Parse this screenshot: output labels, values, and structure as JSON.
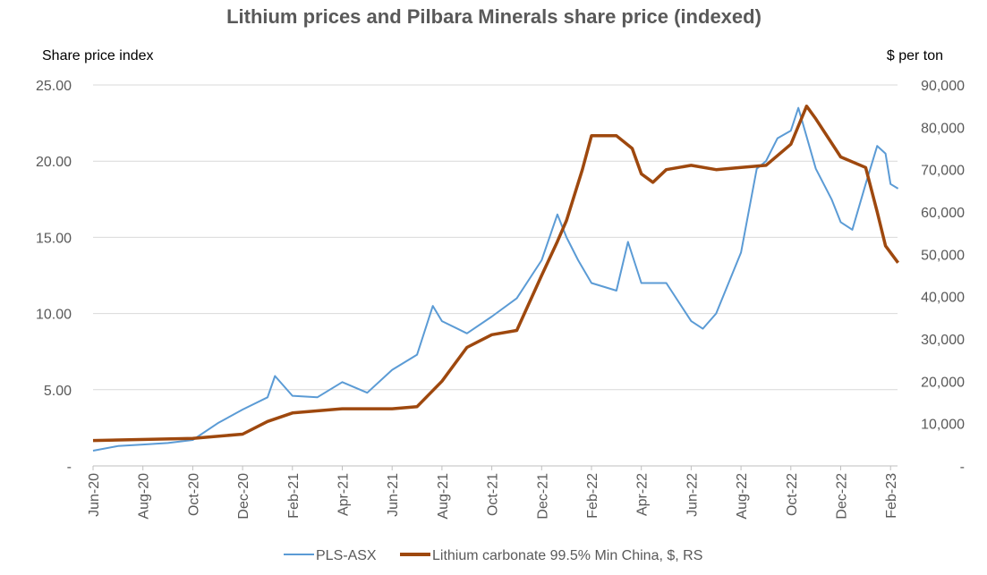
{
  "chart_data": {
    "type": "line",
    "title": "Lithium prices and Pilbara Minerals share price (indexed)",
    "ylabel": "Share price index",
    "y2label": "$ per ton",
    "ylim": [
      0,
      25
    ],
    "y2lim": [
      0,
      90000
    ],
    "yticks": [
      "-",
      "5.00",
      "10.00",
      "15.00",
      "20.00",
      "25.00"
    ],
    "y2ticks": [
      "-",
      "10,000",
      "20,000",
      "30,000",
      "40,000",
      "50,000",
      "60,000",
      "70,000",
      "80,000",
      "90,000"
    ],
    "xticks": [
      "Jun-20",
      "Aug-20",
      "Oct-20",
      "Dec-20",
      "Feb-21",
      "Apr-21",
      "Jun-21",
      "Aug-21",
      "Oct-21",
      "Dec-21",
      "Feb-22",
      "Apr-22",
      "Jun-22",
      "Aug-22",
      "Oct-22",
      "Dec-22",
      "Feb-23"
    ],
    "grid": true,
    "legend": "bottom",
    "series": [
      {
        "name": "PLS-ASX",
        "axis": "left",
        "color": "#5B9BD5",
        "x": [
          "2020-06-01",
          "2020-07-01",
          "2020-08-01",
          "2020-09-01",
          "2020-10-01",
          "2020-11-01",
          "2020-12-01",
          "2021-01-01",
          "2021-01-10",
          "2021-02-01",
          "2021-03-01",
          "2021-04-01",
          "2021-05-01",
          "2021-06-01",
          "2021-07-01",
          "2021-07-20",
          "2021-08-01",
          "2021-09-01",
          "2021-10-01",
          "2021-11-01",
          "2021-12-01",
          "2021-12-20",
          "2022-01-01",
          "2022-01-15",
          "2022-02-01",
          "2022-03-01",
          "2022-03-15",
          "2022-04-01",
          "2022-05-01",
          "2022-06-01",
          "2022-06-15",
          "2022-07-01",
          "2022-08-01",
          "2022-08-20",
          "2022-09-01",
          "2022-09-15",
          "2022-10-01",
          "2022-10-10",
          "2022-11-01",
          "2022-11-20",
          "2022-12-01",
          "2022-12-15",
          "2023-01-01",
          "2023-01-15",
          "2023-01-25",
          "2023-02-01",
          "2023-02-10"
        ],
        "values": [
          1.0,
          1.3,
          1.4,
          1.5,
          1.7,
          2.8,
          3.7,
          4.5,
          5.9,
          4.6,
          4.5,
          5.5,
          4.8,
          6.3,
          7.3,
          10.5,
          9.5,
          8.7,
          9.8,
          11.0,
          13.5,
          16.5,
          15.0,
          13.5,
          12.0,
          11.5,
          14.7,
          12.0,
          12.0,
          9.5,
          9.0,
          10.0,
          14.0,
          19.5,
          20.0,
          21.5,
          22.0,
          23.5,
          19.5,
          17.5,
          16.0,
          15.5,
          18.5,
          21.0,
          20.5,
          18.5,
          18.2
        ]
      },
      {
        "name": "Lithium carbonate 99.5% Min China, $, RS",
        "axis": "right",
        "color": "#9E480E",
        "x": [
          "2020-06-01",
          "2020-10-01",
          "2020-12-01",
          "2021-01-01",
          "2021-02-01",
          "2021-04-01",
          "2021-06-01",
          "2021-07-01",
          "2021-08-01",
          "2021-09-01",
          "2021-10-01",
          "2021-11-01",
          "2021-12-01",
          "2021-12-20",
          "2022-01-01",
          "2022-01-20",
          "2022-02-01",
          "2022-03-01",
          "2022-03-20",
          "2022-04-01",
          "2022-04-15",
          "2022-05-01",
          "2022-06-01",
          "2022-07-01",
          "2022-08-01",
          "2022-09-01",
          "2022-10-01",
          "2022-10-20",
          "2022-11-01",
          "2022-12-01",
          "2023-01-01",
          "2023-01-15",
          "2023-01-25",
          "2023-02-10"
        ],
        "values": [
          6000,
          6500,
          7500,
          10500,
          12500,
          13500,
          13500,
          14000,
          20000,
          28000,
          31000,
          32000,
          45000,
          53000,
          58000,
          70000,
          78000,
          78000,
          75000,
          69000,
          67000,
          70000,
          71000,
          70000,
          70500,
          71000,
          76000,
          85000,
          82000,
          73000,
          70500,
          60000,
          52000,
          48000
        ]
      }
    ]
  }
}
